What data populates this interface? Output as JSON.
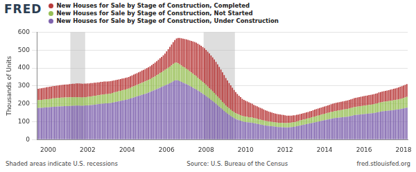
{
  "chart_data": {
    "type": "bar",
    "logo_text": "FRED",
    "y_label": "Thousands of Units",
    "note": "Shaded areas indicate U.S. recessions",
    "source": "Source: U.S. Bureau of the Census",
    "credit": "fred.stlouisfed.org",
    "stacked": true,
    "grid": true,
    "legend": "top-left",
    "ylim": [
      0,
      600
    ],
    "yticks": [
      0,
      100,
      200,
      300,
      400,
      500,
      600
    ],
    "recessions": [
      {
        "from": 20,
        "to": 28
      },
      {
        "from": 101,
        "to": 119
      }
    ],
    "categories": [
      null,
      null,
      null,
      null,
      null,
      null,
      "2000",
      null,
      null,
      null,
      null,
      null,
      null,
      null,
      null,
      null,
      null,
      null,
      null,
      null,
      null,
      null,
      null,
      null,
      null,
      null,
      null,
      null,
      null,
      null,
      "2002",
      null,
      null,
      null,
      null,
      null,
      null,
      null,
      null,
      null,
      null,
      null,
      null,
      null,
      null,
      null,
      null,
      null,
      null,
      null,
      null,
      null,
      null,
      null,
      "2004",
      null,
      null,
      null,
      null,
      null,
      null,
      null,
      null,
      null,
      null,
      null,
      null,
      null,
      null,
      null,
      null,
      null,
      null,
      null,
      null,
      null,
      null,
      null,
      "2006",
      null,
      null,
      null,
      null,
      null,
      null,
      null,
      null,
      null,
      null,
      null,
      null,
      null,
      null,
      null,
      null,
      null,
      null,
      null,
      null,
      null,
      null,
      null,
      "2008",
      null,
      null,
      null,
      null,
      null,
      null,
      null,
      null,
      null,
      null,
      null,
      null,
      null,
      null,
      null,
      null,
      null,
      null,
      null,
      null,
      null,
      null,
      null,
      "2010",
      null,
      null,
      null,
      null,
      null,
      null,
      null,
      null,
      null,
      null,
      null,
      null,
      null,
      null,
      null,
      null,
      null,
      null,
      null,
      null,
      null,
      null,
      null,
      "2012",
      null,
      null,
      null,
      null,
      null,
      null,
      null,
      null,
      null,
      null,
      null,
      null,
      null,
      null,
      null,
      null,
      null,
      null,
      null,
      null,
      null,
      null,
      null,
      "2014",
      null,
      null,
      null,
      null,
      null,
      null,
      null,
      null,
      null,
      null,
      null,
      null,
      null,
      null,
      null,
      null,
      null,
      null,
      null,
      null,
      null,
      null,
      null,
      "2016",
      null,
      null,
      null,
      null,
      null,
      null,
      null,
      null,
      null,
      null,
      null,
      null,
      null,
      null,
      null,
      null,
      null,
      null,
      null,
      null,
      null,
      null,
      null,
      "2018",
      null,
      null
    ],
    "series": [
      {
        "name": "New Houses for Sale by Stage of Construction, Completed",
        "color": "#b83a3a",
        "values": [
          64,
          65,
          65,
          66,
          66,
          67,
          67,
          68,
          68,
          69,
          69,
          70,
          70,
          71,
          71,
          72,
          72,
          73,
          73,
          74,
          75,
          76,
          76,
          77,
          78,
          78,
          78,
          77,
          77,
          76,
          76,
          75,
          75,
          74,
          74,
          73,
          73,
          72,
          72,
          71,
          71,
          70,
          70,
          69,
          69,
          68,
          68,
          67,
          67,
          66,
          66,
          66,
          65,
          65,
          65,
          65,
          65,
          65,
          66,
          66,
          66,
          67,
          67,
          68,
          68,
          69,
          70,
          71,
          72,
          73,
          75,
          77,
          79,
          81,
          83,
          85,
          88,
          91,
          98,
          104,
          110,
          116,
          122,
          128,
          135,
          142,
          148,
          152,
          156,
          160,
          164,
          168,
          172,
          176,
          180,
          184,
          187,
          190,
          192,
          194,
          195,
          196,
          196,
          195,
          194,
          192,
          190,
          187,
          184,
          180,
          176,
          171,
          166,
          160,
          154,
          148,
          142,
          136,
          130,
          124,
          118,
          112,
          106,
          101,
          96,
          92,
          89,
          86,
          83,
          80,
          77,
          74,
          72,
          70,
          68,
          66,
          64,
          62,
          60,
          58,
          56,
          54,
          52,
          50,
          49,
          48,
          47,
          46,
          45,
          44,
          43,
          42,
          41,
          40,
          39,
          38,
          37,
          37,
          36,
          36,
          36,
          36,
          36,
          36,
          36,
          37,
          37,
          38,
          38,
          39,
          39,
          40,
          40,
          41,
          41,
          42,
          42,
          43,
          43,
          44,
          44,
          45,
          45,
          46,
          46,
          47,
          47,
          48,
          48,
          49,
          49,
          50,
          50,
          51,
          51,
          52,
          52,
          53,
          53,
          54,
          54,
          55,
          55,
          56,
          56,
          57,
          57,
          58,
          58,
          59,
          59,
          60,
          60,
          61,
          62,
          63,
          64,
          65,
          66,
          67,
          68,
          69,
          70,
          71,
          72
        ]
      },
      {
        "name": "New Houses for Sale by Stage of Construction, Not Started",
        "color": "#97bf55",
        "values": [
          44,
          44,
          45,
          45,
          45,
          45,
          46,
          46,
          46,
          47,
          47,
          47,
          47,
          48,
          48,
          48,
          48,
          48,
          48,
          48,
          48,
          47,
          47,
          47,
          46,
          46,
          46,
          46,
          46,
          46,
          47,
          47,
          48,
          48,
          49,
          49,
          50,
          50,
          51,
          51,
          52,
          52,
          52,
          53,
          53,
          54,
          54,
          55,
          55,
          56,
          56,
          57,
          57,
          58,
          58,
          59,
          60,
          61,
          62,
          63,
          64,
          65,
          66,
          67,
          68,
          69,
          70,
          71,
          72,
          73,
          74,
          75,
          77,
          79,
          81,
          83,
          85,
          87,
          89,
          91,
          93,
          95,
          97,
          98,
          98,
          96,
          94,
          92,
          90,
          88,
          86,
          84,
          82,
          80,
          78,
          76,
          74,
          72,
          70,
          68,
          66,
          64,
          62,
          60,
          58,
          56,
          54,
          52,
          50,
          48,
          46,
          44,
          42,
          40,
          38,
          37,
          36,
          35,
          34,
          33,
          32,
          32,
          31,
          31,
          30,
          30,
          30,
          30,
          29,
          29,
          29,
          28,
          28,
          28,
          27,
          27,
          27,
          26,
          26,
          26,
          25,
          25,
          25,
          25,
          24,
          24,
          24,
          24,
          24,
          24,
          24,
          24,
          25,
          25,
          25,
          26,
          26,
          27,
          27,
          28,
          28,
          29,
          29,
          30,
          30,
          31,
          31,
          32,
          33,
          33,
          34,
          34,
          35,
          35,
          36,
          36,
          37,
          37,
          38,
          38,
          39,
          39,
          40,
          40,
          41,
          41,
          42,
          42,
          43,
          43,
          44,
          44,
          45,
          45,
          46,
          46,
          47,
          47,
          48,
          48,
          48,
          49,
          49,
          49,
          50,
          50,
          50,
          51,
          51,
          51,
          52,
          52,
          53,
          53,
          54,
          54,
          55,
          55,
          56,
          56,
          57,
          57,
          58,
          59,
          60
        ]
      },
      {
        "name": "New Houses for Sale by Stage of Construction, Under Construction",
        "color": "#7e62ad",
        "values": [
          176,
          177,
          177,
          178,
          179,
          180,
          180,
          181,
          182,
          183,
          183,
          184,
          185,
          185,
          186,
          186,
          187,
          187,
          187,
          188,
          188,
          189,
          189,
          190,
          190,
          190,
          189,
          189,
          190,
          191,
          191,
          192,
          193,
          194,
          195,
          196,
          197,
          198,
          199,
          200,
          201,
          202,
          202,
          203,
          204,
          206,
          208,
          210,
          212,
          214,
          216,
          218,
          220,
          222,
          224,
          226,
          229,
          232,
          235,
          238,
          241,
          244,
          247,
          250,
          253,
          256,
          259,
          262,
          266,
          270,
          274,
          278,
          282,
          286,
          290,
          294,
          298,
          302,
          306,
          310,
          315,
          320,
          325,
          330,
          332,
          330,
          326,
          322,
          318,
          314,
          310,
          305,
          300,
          295,
          290,
          285,
          280,
          274,
          268,
          262,
          256,
          250,
          243,
          236,
          229,
          222,
          215,
          208,
          200,
          192,
          184,
          176,
          168,
          160,
          152,
          145,
          138,
          132,
          126,
          120,
          115,
          111,
          108,
          105,
          102,
          100,
          98,
          97,
          96,
          95,
          94,
          92,
          90,
          88,
          86,
          84,
          82,
          80,
          78,
          77,
          76,
          75,
          74,
          73,
          72,
          71,
          70,
          70,
          69,
          69,
          68,
          68,
          68,
          69,
          70,
          71,
          72,
          74,
          76,
          78,
          80,
          82,
          84,
          86,
          88,
          90,
          92,
          94,
          96,
          98,
          100,
          102,
          104,
          106,
          108,
          110,
          112,
          114,
          116,
          118,
          120,
          121,
          122,
          123,
          124,
          125,
          126,
          127,
          128,
          130,
          132,
          134,
          136,
          137,
          138,
          139,
          140,
          141,
          142,
          143,
          144,
          145,
          146,
          147,
          148,
          150,
          152,
          154,
          156,
          158,
          159,
          160,
          161,
          162,
          163,
          164,
          165,
          166,
          167,
          168,
          170,
          172,
          174,
          176,
          178
        ]
      }
    ]
  }
}
